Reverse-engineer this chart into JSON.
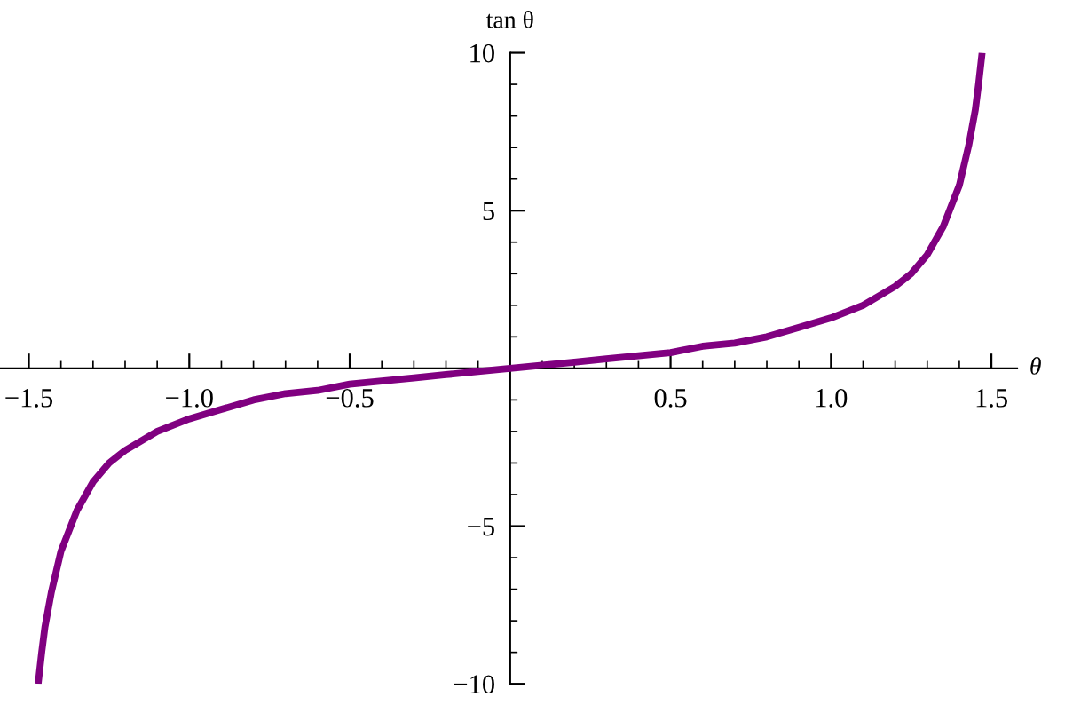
{
  "chart_data": {
    "type": "line",
    "xlabel": "θ",
    "ylabel": "tan θ",
    "series": [
      {
        "color": "#800080",
        "x": [
          -1.4711,
          -1.46,
          -1.45,
          -1.43,
          -1.4,
          -1.35,
          -1.3,
          -1.25,
          -1.2,
          -1.1,
          -1.0,
          -0.9,
          -0.8,
          -0.7,
          -0.6,
          -0.5,
          -0.4,
          -0.3,
          -0.2,
          -0.1,
          0,
          0.1,
          0.2,
          0.3,
          0.4,
          0.5,
          0.6,
          0.7,
          0.8,
          0.9,
          1.0,
          1.1,
          1.2,
          1.25,
          1.3,
          1.35,
          1.4,
          1.43,
          1.45,
          1.46,
          1.4711
        ],
        "values": [
          -10,
          -9.0,
          -8.2,
          -7.1,
          -5.8,
          -4.5,
          -3.6,
          -3.0,
          -2.6,
          -2.0,
          -1.6,
          -1.3,
          -1.0,
          -0.8,
          -0.7,
          -0.5,
          -0.4,
          -0.3,
          -0.2,
          -0.1,
          0,
          0.1,
          0.2,
          0.3,
          0.4,
          0.5,
          0.7,
          0.8,
          1.0,
          1.3,
          1.6,
          2.0,
          2.6,
          3.0,
          3.6,
          4.5,
          5.8,
          7.1,
          8.2,
          9.0,
          10
        ]
      }
    ],
    "xlim": [
      -1.59,
      1.58
    ],
    "ylim": [
      -10,
      10
    ],
    "xticks": [
      {
        "value": -1.5,
        "label": "−1.5"
      },
      {
        "value": -1.0,
        "label": "−1.0"
      },
      {
        "value": -0.5,
        "label": "−0.5"
      },
      {
        "value": 0.5,
        "label": "0.5"
      },
      {
        "value": 1.0,
        "label": "1.0"
      },
      {
        "value": 1.5,
        "label": "1.5"
      },
      {
        "value": -1.4,
        "label": null
      },
      {
        "value": -1.3,
        "label": null
      },
      {
        "value": -1.2,
        "label": null
      },
      {
        "value": -1.1,
        "label": null
      },
      {
        "value": -0.9,
        "label": null
      },
      {
        "value": -0.8,
        "label": null
      },
      {
        "value": -0.7,
        "label": null
      },
      {
        "value": -0.6,
        "label": null
      },
      {
        "value": -0.4,
        "label": null
      },
      {
        "value": -0.3,
        "label": null
      },
      {
        "value": -0.2,
        "label": null
      },
      {
        "value": -0.1,
        "label": null
      },
      {
        "value": 0.1,
        "label": null
      },
      {
        "value": 0.2,
        "label": null
      },
      {
        "value": 0.3,
        "label": null
      },
      {
        "value": 0.4,
        "label": null
      },
      {
        "value": 0.6,
        "label": null
      },
      {
        "value": 0.7,
        "label": null
      },
      {
        "value": 0.8,
        "label": null
      },
      {
        "value": 0.9,
        "label": null
      },
      {
        "value": 1.1,
        "label": null
      },
      {
        "value": 1.2,
        "label": null
      },
      {
        "value": 1.3,
        "label": null
      },
      {
        "value": 1.4,
        "label": null
      }
    ],
    "yticks": [
      {
        "value": -10,
        "label": "−10"
      },
      {
        "value": -5,
        "label": "−5"
      },
      {
        "value": 5,
        "label": "5"
      },
      {
        "value": 10,
        "label": "10"
      },
      {
        "value": -9,
        "label": null
      },
      {
        "value": -8,
        "label": null
      },
      {
        "value": -7,
        "label": null
      },
      {
        "value": -6,
        "label": null
      },
      {
        "value": -4,
        "label": null
      },
      {
        "value": -3,
        "label": null
      },
      {
        "value": -2,
        "label": null
      },
      {
        "value": -1,
        "label": null
      },
      {
        "value": 1,
        "label": null
      },
      {
        "value": 2,
        "label": null
      },
      {
        "value": 3,
        "label": null
      },
      {
        "value": 4,
        "label": null
      },
      {
        "value": 6,
        "label": null
      },
      {
        "value": 7,
        "label": null
      },
      {
        "value": 8,
        "label": null
      },
      {
        "value": 9,
        "label": null
      }
    ],
    "grid": false,
    "legend": false,
    "marker": "none",
    "line_style": "solid"
  }
}
